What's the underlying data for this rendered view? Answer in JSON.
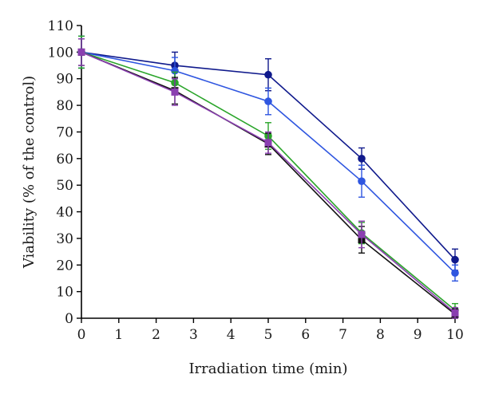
{
  "chart_data": {
    "type": "line",
    "xlabel": "Irradiation time (min)",
    "ylabel": "Viability (% of the control)",
    "xlim": [
      0,
      10
    ],
    "ylim": [
      0,
      110
    ],
    "xticks": [
      0,
      1,
      2,
      3,
      4,
      5,
      6,
      7,
      8,
      9,
      10
    ],
    "yticks": [
      0,
      10,
      20,
      30,
      40,
      50,
      60,
      70,
      80,
      90,
      100,
      110
    ],
    "grid": false,
    "legend": "none",
    "x": [
      0,
      2.5,
      5,
      7.5,
      10
    ],
    "series": [
      {
        "color": "#101a8c",
        "marker": "circle",
        "values": [
          100,
          95,
          91.5,
          60,
          22
        ],
        "errors": [
          6,
          5,
          6,
          4,
          4
        ]
      },
      {
        "color": "#2f56e0",
        "marker": "circle",
        "values": [
          100,
          93,
          81.5,
          51.5,
          17
        ],
        "errors": [
          6,
          5,
          5,
          6,
          3
        ]
      },
      {
        "color": "#2aa52a",
        "marker": "circle",
        "values": [
          100,
          88.5,
          68.5,
          32,
          3
        ],
        "errors": [
          6,
          4,
          5,
          4,
          2.5
        ]
      },
      {
        "color": "#111111",
        "marker": "square",
        "values": [
          100,
          85.5,
          65.5,
          29.5,
          1.5
        ],
        "errors": [
          5,
          5,
          4,
          5,
          2
        ]
      },
      {
        "color": "#8a3fb0",
        "marker": "square",
        "values": [
          100,
          85,
          66,
          31.5,
          2
        ],
        "errors": [
          5,
          5,
          4,
          5,
          2
        ]
      }
    ]
  }
}
